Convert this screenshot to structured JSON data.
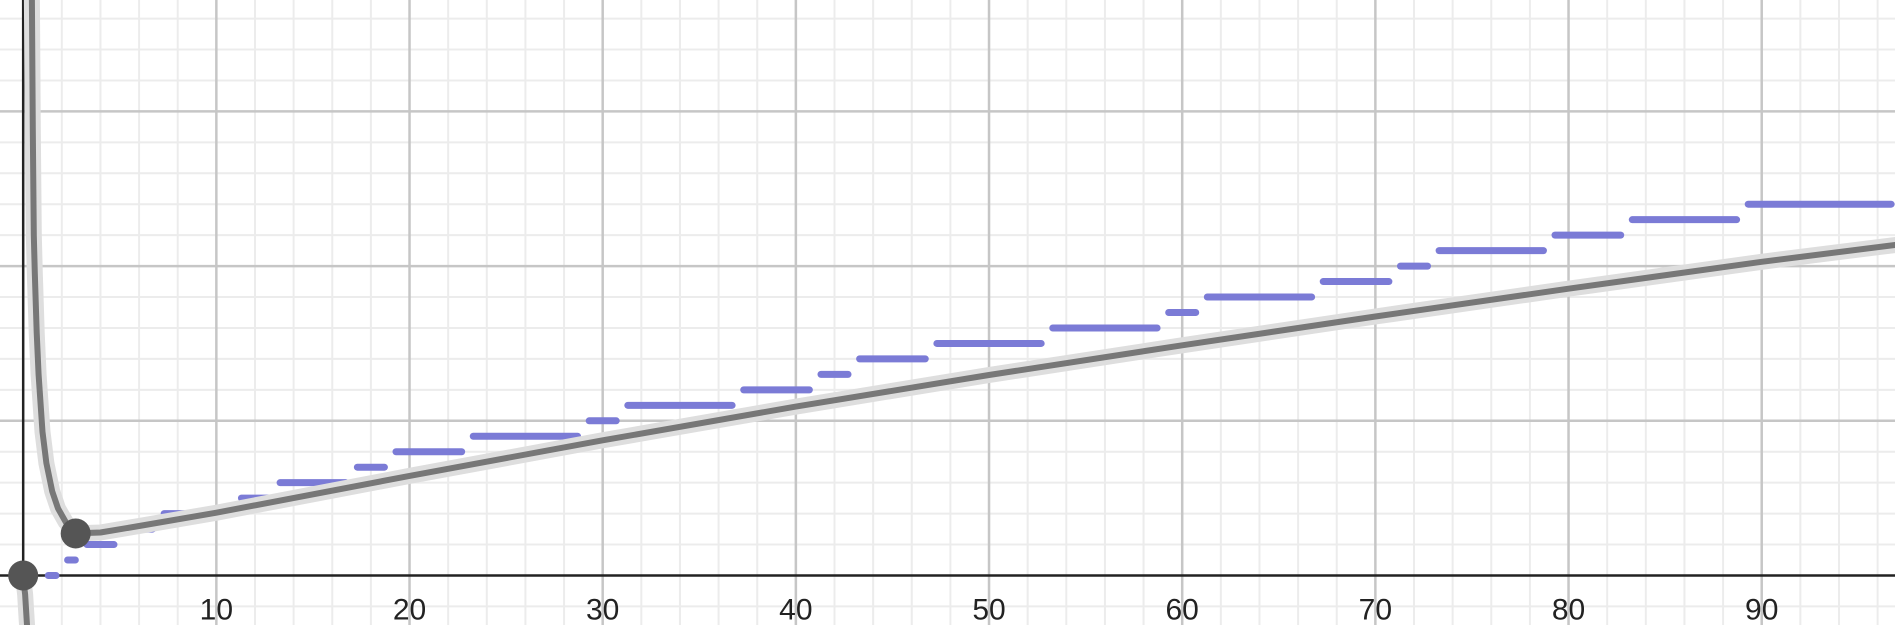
{
  "colors": {
    "background": "#ffffff",
    "major_grid": "#c6c6c6",
    "minor_grid": "#ececec",
    "axis": "#222222",
    "step_series": "#7b7bd6",
    "curve": "#777777",
    "curve_halo": "#dedede",
    "point": "#555555"
  },
  "chart_data": {
    "type": "line",
    "title": "",
    "xlabel": "",
    "ylabel": "",
    "grid": true,
    "xlim": [
      -1.2,
      96.9
    ],
    "ylim": [
      -1.6,
      18.6
    ],
    "x_ticks": [
      10,
      20,
      30,
      40,
      50,
      60,
      70,
      80,
      90
    ],
    "x_tick_labels": [
      "10",
      "20",
      "30",
      "40",
      "50",
      "60",
      "70",
      "80",
      "90"
    ],
    "y_gridlines": [
      5,
      10,
      15
    ],
    "step_series": [
      {
        "x0": 1,
        "x1": 2,
        "y": 0
      },
      {
        "x0": 2,
        "x1": 3,
        "y": 0.5
      },
      {
        "x0": 3,
        "x1": 5,
        "y": 1
      },
      {
        "x0": 5,
        "x1": 7,
        "y": 1.5
      },
      {
        "x0": 7,
        "x1": 11,
        "y": 2
      },
      {
        "x0": 11,
        "x1": 13,
        "y": 2.5
      },
      {
        "x0": 13,
        "x1": 17,
        "y": 3
      },
      {
        "x0": 17,
        "x1": 19,
        "y": 3.5
      },
      {
        "x0": 19,
        "x1": 23,
        "y": 4
      },
      {
        "x0": 23,
        "x1": 29,
        "y": 4.5
      },
      {
        "x0": 29,
        "x1": 31,
        "y": 5
      },
      {
        "x0": 31,
        "x1": 37,
        "y": 5.5
      },
      {
        "x0": 37,
        "x1": 41,
        "y": 6
      },
      {
        "x0": 41,
        "x1": 43,
        "y": 6.5
      },
      {
        "x0": 43,
        "x1": 47,
        "y": 7
      },
      {
        "x0": 47,
        "x1": 53,
        "y": 7.5
      },
      {
        "x0": 53,
        "x1": 59,
        "y": 8
      },
      {
        "x0": 59,
        "x1": 61,
        "y": 8.5
      },
      {
        "x0": 61,
        "x1": 67,
        "y": 9
      },
      {
        "x0": 67,
        "x1": 71,
        "y": 9.5
      },
      {
        "x0": 71,
        "x1": 73,
        "y": 10
      },
      {
        "x0": 73,
        "x1": 79,
        "y": 10.5
      },
      {
        "x0": 79,
        "x1": 83,
        "y": 11
      },
      {
        "x0": 83,
        "x1": 89,
        "y": 11.5
      },
      {
        "x0": 89,
        "x1": 97,
        "y": 12
      }
    ],
    "curve": {
      "x": [
        0.45,
        0.5,
        0.55,
        0.6,
        0.7,
        0.8,
        1.0,
        1.2,
        1.5,
        1.8,
        2.2,
        2.718,
        4,
        6,
        10,
        20,
        30,
        40,
        50,
        60,
        70,
        80,
        90,
        96.9
      ],
      "y": [
        18.6,
        14.4,
        11.0,
        9.78,
        7.85,
        6.49,
        4.64,
        3.63,
        2.72,
        2.17,
        1.73,
        1.36,
        1.39,
        1.6,
        2.03,
        3.22,
        4.37,
        5.46,
        6.48,
        7.44,
        8.37,
        9.27,
        10.14,
        10.68
      ]
    },
    "curve_left_branch": {
      "x": [
        0.0,
        0.1,
        0.2
      ],
      "y": [
        -0.1,
        -0.6,
        -1.6
      ]
    },
    "points": [
      {
        "x": 0,
        "y": 0
      },
      {
        "x": 2.718,
        "y": 1.359
      }
    ]
  }
}
